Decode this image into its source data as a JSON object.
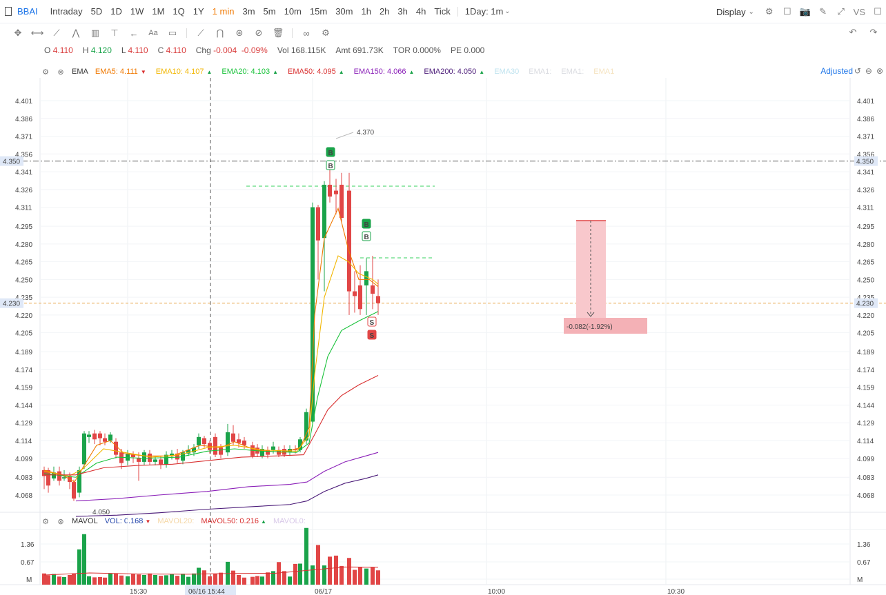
{
  "header": {
    "symbol": "BBAI",
    "timeframes": [
      "Intraday",
      "5D",
      "1D",
      "1W",
      "1M",
      "1Q",
      "1Y",
      "1 min",
      "3m",
      "5m",
      "10m",
      "15m",
      "30m",
      "1h",
      "2h",
      "3h",
      "4h",
      "Tick"
    ],
    "active_timeframe": "1 min",
    "range_select": "1Day: 1m",
    "display_label": "Display",
    "vs_label": "VS"
  },
  "quote": {
    "open_label": "O",
    "open": "4.110",
    "high_label": "H",
    "high": "4.120",
    "low_label": "L",
    "low": "4.110",
    "close_label": "C",
    "close": "4.110",
    "chg_label": "Chg",
    "chg": "-0.004",
    "chg_pct": "-0.09%",
    "vol_label": "Vol",
    "vol": "168.115K",
    "amt_label": "Amt",
    "amt": "691.73K",
    "tor_label": "TOR",
    "tor": "0.000%",
    "pe_label": "PE",
    "pe": "0.000"
  },
  "ema_legend": {
    "title": "EMA",
    "items": [
      {
        "label": "EMA5:",
        "value": "4.111",
        "dir": "down",
        "color": "#f07800"
      },
      {
        "label": "EMA10:",
        "value": "4.107",
        "dir": "up",
        "color": "#f2b600"
      },
      {
        "label": "EMA20:",
        "value": "4.103",
        "dir": "up",
        "color": "#19c23a"
      },
      {
        "label": "EMA50:",
        "value": "4.095",
        "dir": "up",
        "color": "#d93030"
      },
      {
        "label": "EMA150:",
        "value": "4.066",
        "dir": "up",
        "color": "#8a1fb8"
      },
      {
        "label": "EMA200:",
        "value": "4.050",
        "dir": "up",
        "color": "#4a1a78"
      },
      {
        "label": "EMA30",
        "value": "",
        "dir": "",
        "color": "#bfe3ef"
      },
      {
        "label": "EMA1:",
        "value": "",
        "dir": "",
        "color": "#d9dbe0"
      },
      {
        "label": "EMA1:",
        "value": "",
        "dir": "",
        "color": "#d9dbe0"
      },
      {
        "label": "EMA1",
        "value": "",
        "dir": "",
        "color": "#f5e3c0"
      }
    ],
    "adjusted_label": "Adjusted"
  },
  "price_axis": {
    "ticks": [
      "4.401",
      "4.386",
      "4.371",
      "4.356",
      "4.341",
      "4.326",
      "4.311",
      "4.295",
      "4.280",
      "4.265",
      "4.250",
      "4.235",
      "4.220",
      "4.205",
      "4.189",
      "4.174",
      "4.159",
      "4.144",
      "4.129",
      "4.114",
      "4.099",
      "4.083",
      "4.068"
    ],
    "marker_high": "4.350",
    "marker_current": "4.230",
    "high_annotation": "4.370",
    "low_annotation": "4.050"
  },
  "time_axis": {
    "labels": [
      "15:30",
      "06/17",
      "10:00",
      "10:30"
    ],
    "crosshair_label": "06/16 15:44"
  },
  "measure": {
    "label": "-0.082(-1.92%)"
  },
  "markers": [
    "B",
    "B",
    "B",
    "B",
    "S",
    "S"
  ],
  "mavol_legend": {
    "title": "MAVOL",
    "vol_label": "VOL:",
    "vol_value": "0.168",
    "vol_dir": "down",
    "mavol20_label": "MAVOL20:",
    "mavol50_label": "MAVOL50:",
    "mavol50_value": "0.216",
    "mavol50_dir": "up",
    "mavol0_label": "MAVOL0:"
  },
  "volume_axis": {
    "ticks": [
      "1.36",
      "0.67",
      "M"
    ]
  },
  "colors": {
    "up": "#1aa34a",
    "down": "#e14646",
    "accent": "#1a73e8",
    "active": "#f07800"
  }
}
